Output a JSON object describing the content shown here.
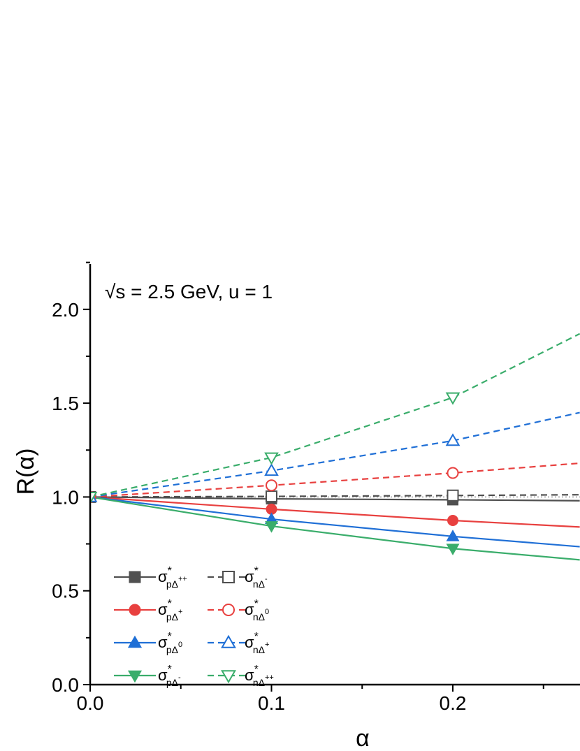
{
  "chart_data": {
    "type": "line",
    "title": "",
    "xlabel": "α",
    "ylabel": "R(α)",
    "annotation": "√s = 2.5 GeV,  u = 1",
    "xlim": [
      0,
      0.27
    ],
    "ylim": [
      0,
      2.25
    ],
    "x_ticks": [
      0.0,
      0.1,
      0.2
    ],
    "x_tick_labels": [
      "0.0",
      "0.1",
      "0.2"
    ],
    "y_ticks": [
      0.0,
      0.5,
      1.0,
      1.5,
      2.0
    ],
    "y_tick_labels": [
      "0.0",
      "0.5",
      "1.0",
      "1.5",
      "2.0"
    ],
    "legend_position": "lower-left",
    "grid": false,
    "series": [
      {
        "name": "σ*pΔ++",
        "sigma": "σ",
        "star": "*",
        "sub": "pΔ",
        "sup": "++",
        "color": "#505050",
        "dash": "solid",
        "marker": "square",
        "filled": true,
        "x": [
          0,
          0.1,
          0.2,
          0.27
        ],
        "y": [
          1.0,
          0.99,
          0.985,
          0.98
        ]
      },
      {
        "name": "σ*pΔ+",
        "sigma": "σ",
        "star": "*",
        "sub": "pΔ",
        "sup": "+",
        "color": "#e8403f",
        "dash": "solid",
        "marker": "circle",
        "filled": true,
        "x": [
          0,
          0.1,
          0.2,
          0.27
        ],
        "y": [
          1.0,
          0.935,
          0.875,
          0.84
        ]
      },
      {
        "name": "σ*pΔ0",
        "sigma": "σ",
        "star": "*",
        "sub": "pΔ",
        "sup": "0",
        "color": "#1f6fd6",
        "dash": "solid",
        "marker": "triangle-up",
        "filled": true,
        "x": [
          0,
          0.1,
          0.2,
          0.27
        ],
        "y": [
          1.0,
          0.882,
          0.79,
          0.735
        ]
      },
      {
        "name": "σ*pΔ-",
        "sigma": "σ",
        "star": "*",
        "sub": "pΔ",
        "sup": "-",
        "color": "#3aad6b",
        "dash": "solid",
        "marker": "triangle-down",
        "filled": true,
        "x": [
          0,
          0.1,
          0.2,
          0.27
        ],
        "y": [
          1.0,
          0.845,
          0.725,
          0.665
        ]
      },
      {
        "name": "σ*nΔ-",
        "sigma": "σ",
        "star": "*",
        "sub": "nΔ",
        "sup": "-",
        "color": "#505050",
        "dash": "dashed",
        "marker": "square",
        "filled": false,
        "x": [
          0,
          0.1,
          0.2,
          0.27
        ],
        "y": [
          1.0,
          1.003,
          1.008,
          1.012
        ]
      },
      {
        "name": "σ*nΔ0",
        "sigma": "σ",
        "star": "*",
        "sub": "nΔ",
        "sup": "0",
        "color": "#e8403f",
        "dash": "dashed",
        "marker": "circle",
        "filled": false,
        "x": [
          0,
          0.1,
          0.2,
          0.27
        ],
        "y": [
          1.0,
          1.062,
          1.128,
          1.18
        ]
      },
      {
        "name": "σ*nΔ+",
        "sigma": "σ",
        "star": "*",
        "sub": "nΔ",
        "sup": "+",
        "color": "#1f6fd6",
        "dash": "dashed",
        "marker": "triangle-up",
        "filled": false,
        "x": [
          0,
          0.1,
          0.2,
          0.27
        ],
        "y": [
          1.0,
          1.14,
          1.3,
          1.45
        ]
      },
      {
        "name": "σ*nΔ++",
        "sigma": "σ",
        "star": "*",
        "sub": "nΔ",
        "sup": "++",
        "color": "#3aad6b",
        "dash": "dashed",
        "marker": "triangle-down",
        "filled": false,
        "x": [
          0,
          0.1,
          0.2,
          0.27
        ],
        "y": [
          1.0,
          1.21,
          1.53,
          1.87
        ]
      }
    ],
    "reference_line": {
      "y": 1.0,
      "color": "#9a9a9a",
      "dash": "dotted"
    }
  }
}
